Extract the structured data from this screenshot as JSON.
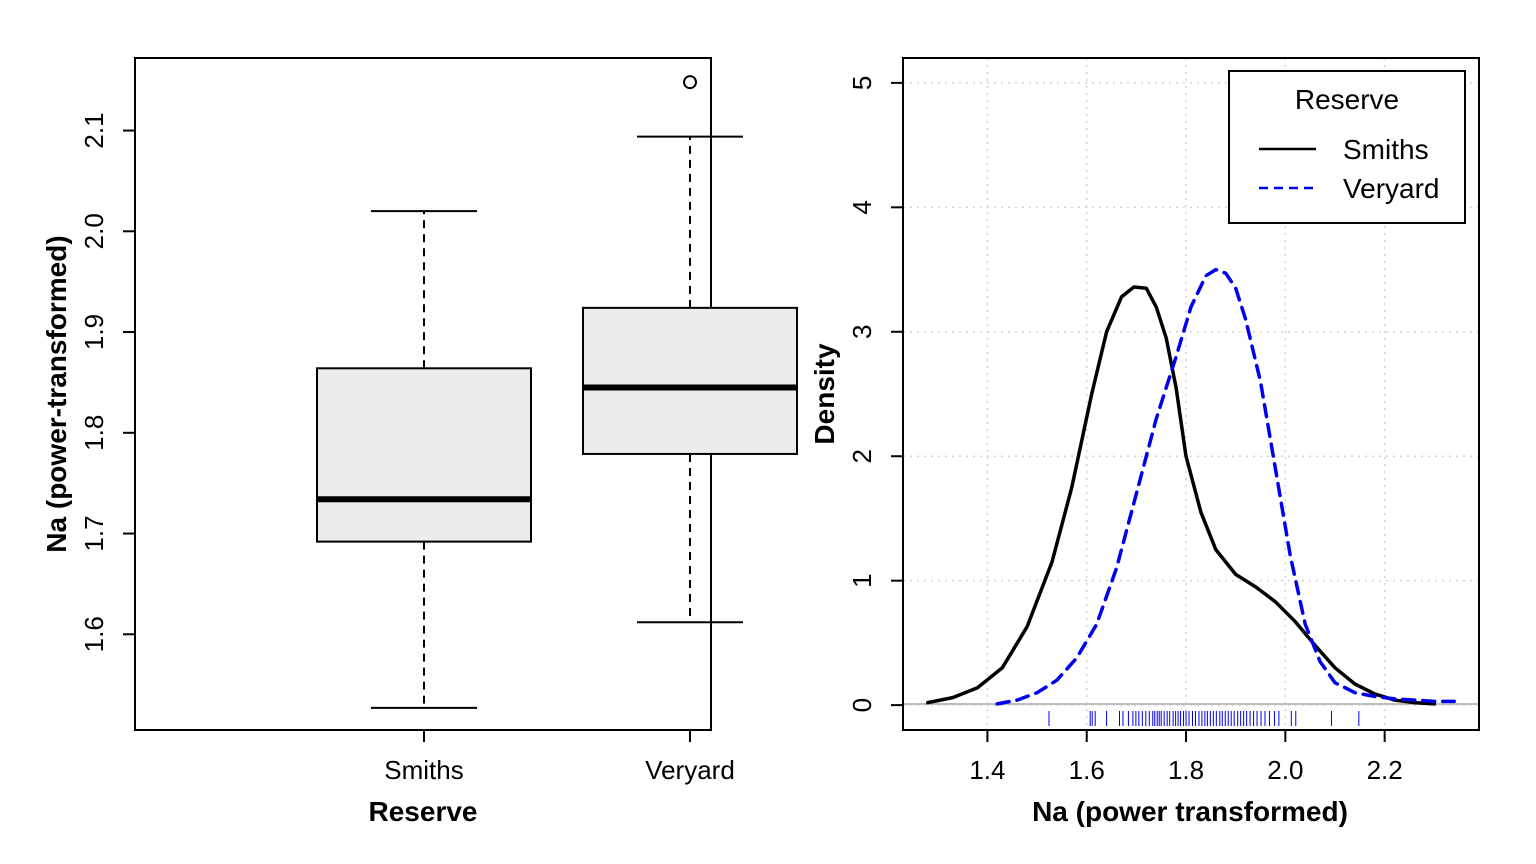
{
  "chart_data": [
    {
      "type": "boxplot",
      "xlabel": "Reserve",
      "ylabel": "Na (power-transformed)",
      "ylim": [
        1.505,
        2.172
      ],
      "y_ticks": [
        "1.6",
        "1.7",
        "1.8",
        "1.9",
        "2.0",
        "2.1"
      ],
      "groups": [
        {
          "name": "Smiths",
          "whisker_low": 1.527,
          "q1": 1.692,
          "median": 1.734,
          "q3": 1.864,
          "whisker_high": 2.02,
          "outliers": []
        },
        {
          "name": "Veryard",
          "whisker_low": 1.612,
          "q1": 1.779,
          "median": 1.845,
          "q3": 1.924,
          "whisker_high": 2.094,
          "outliers": [
            2.148
          ]
        }
      ],
      "box_fill": "#ebebeb",
      "grid": false
    },
    {
      "type": "line",
      "xlabel": "Na (power transformed)",
      "ylabel": "Density",
      "xlim": [
        1.23,
        2.39
      ],
      "ylim": [
        -0.2,
        5.2
      ],
      "x_ticks": [
        "1.4",
        "1.6",
        "1.8",
        "2.0",
        "2.2"
      ],
      "y_ticks": [
        "0",
        "1",
        "2",
        "3",
        "4",
        "5"
      ],
      "grid": true,
      "legend": {
        "title": "Reserve",
        "position": "top-right"
      },
      "series": [
        {
          "name": "Smiths",
          "color": "#000000",
          "dash": "solid",
          "x": [
            1.28,
            1.33,
            1.38,
            1.43,
            1.48,
            1.53,
            1.57,
            1.61,
            1.64,
            1.67,
            1.695,
            1.72,
            1.74,
            1.76,
            1.78,
            1.8,
            1.83,
            1.86,
            1.9,
            1.94,
            1.98,
            2.02,
            2.06,
            2.1,
            2.14,
            2.18,
            2.22,
            2.26,
            2.3
          ],
          "y": [
            0.02,
            0.06,
            0.14,
            0.3,
            0.63,
            1.15,
            1.75,
            2.5,
            3.0,
            3.28,
            3.36,
            3.35,
            3.2,
            2.95,
            2.55,
            2.0,
            1.55,
            1.25,
            1.05,
            0.95,
            0.83,
            0.67,
            0.48,
            0.3,
            0.17,
            0.09,
            0.04,
            0.02,
            0.01
          ]
        },
        {
          "name": "Veryard",
          "color": "#0000ee",
          "dash": "dashed",
          "x": [
            1.42,
            1.46,
            1.5,
            1.54,
            1.58,
            1.62,
            1.66,
            1.7,
            1.74,
            1.78,
            1.81,
            1.84,
            1.86,
            1.88,
            1.9,
            1.92,
            1.95,
            1.98,
            2.01,
            2.04,
            2.07,
            2.1,
            2.14,
            2.18,
            2.22,
            2.26,
            2.3,
            2.34
          ],
          "y": [
            0.01,
            0.04,
            0.1,
            0.2,
            0.38,
            0.65,
            1.1,
            1.7,
            2.3,
            2.8,
            3.2,
            3.45,
            3.5,
            3.47,
            3.35,
            3.1,
            2.6,
            1.9,
            1.2,
            0.65,
            0.35,
            0.18,
            0.1,
            0.07,
            0.05,
            0.04,
            0.03,
            0.03
          ]
        }
      ],
      "rug": {
        "color": "#0000ee",
        "values": [
          1.524,
          1.607,
          1.611,
          1.617,
          1.64,
          1.666,
          1.673,
          1.684,
          1.693,
          1.699,
          1.705,
          1.712,
          1.719,
          1.726,
          1.733,
          1.737,
          1.742,
          1.746,
          1.75,
          1.756,
          1.762,
          1.767,
          1.774,
          1.779,
          1.784,
          1.789,
          1.795,
          1.8,
          1.806,
          1.813,
          1.819,
          1.826,
          1.832,
          1.838,
          1.843,
          1.849,
          1.855,
          1.861,
          1.868,
          1.873,
          1.879,
          1.885,
          1.891,
          1.897,
          1.904,
          1.91,
          1.916,
          1.922,
          1.929,
          1.936,
          1.943,
          1.951,
          1.959,
          1.968,
          1.978,
          1.987,
          2.012,
          2.021,
          2.093,
          2.148
        ]
      }
    }
  ]
}
